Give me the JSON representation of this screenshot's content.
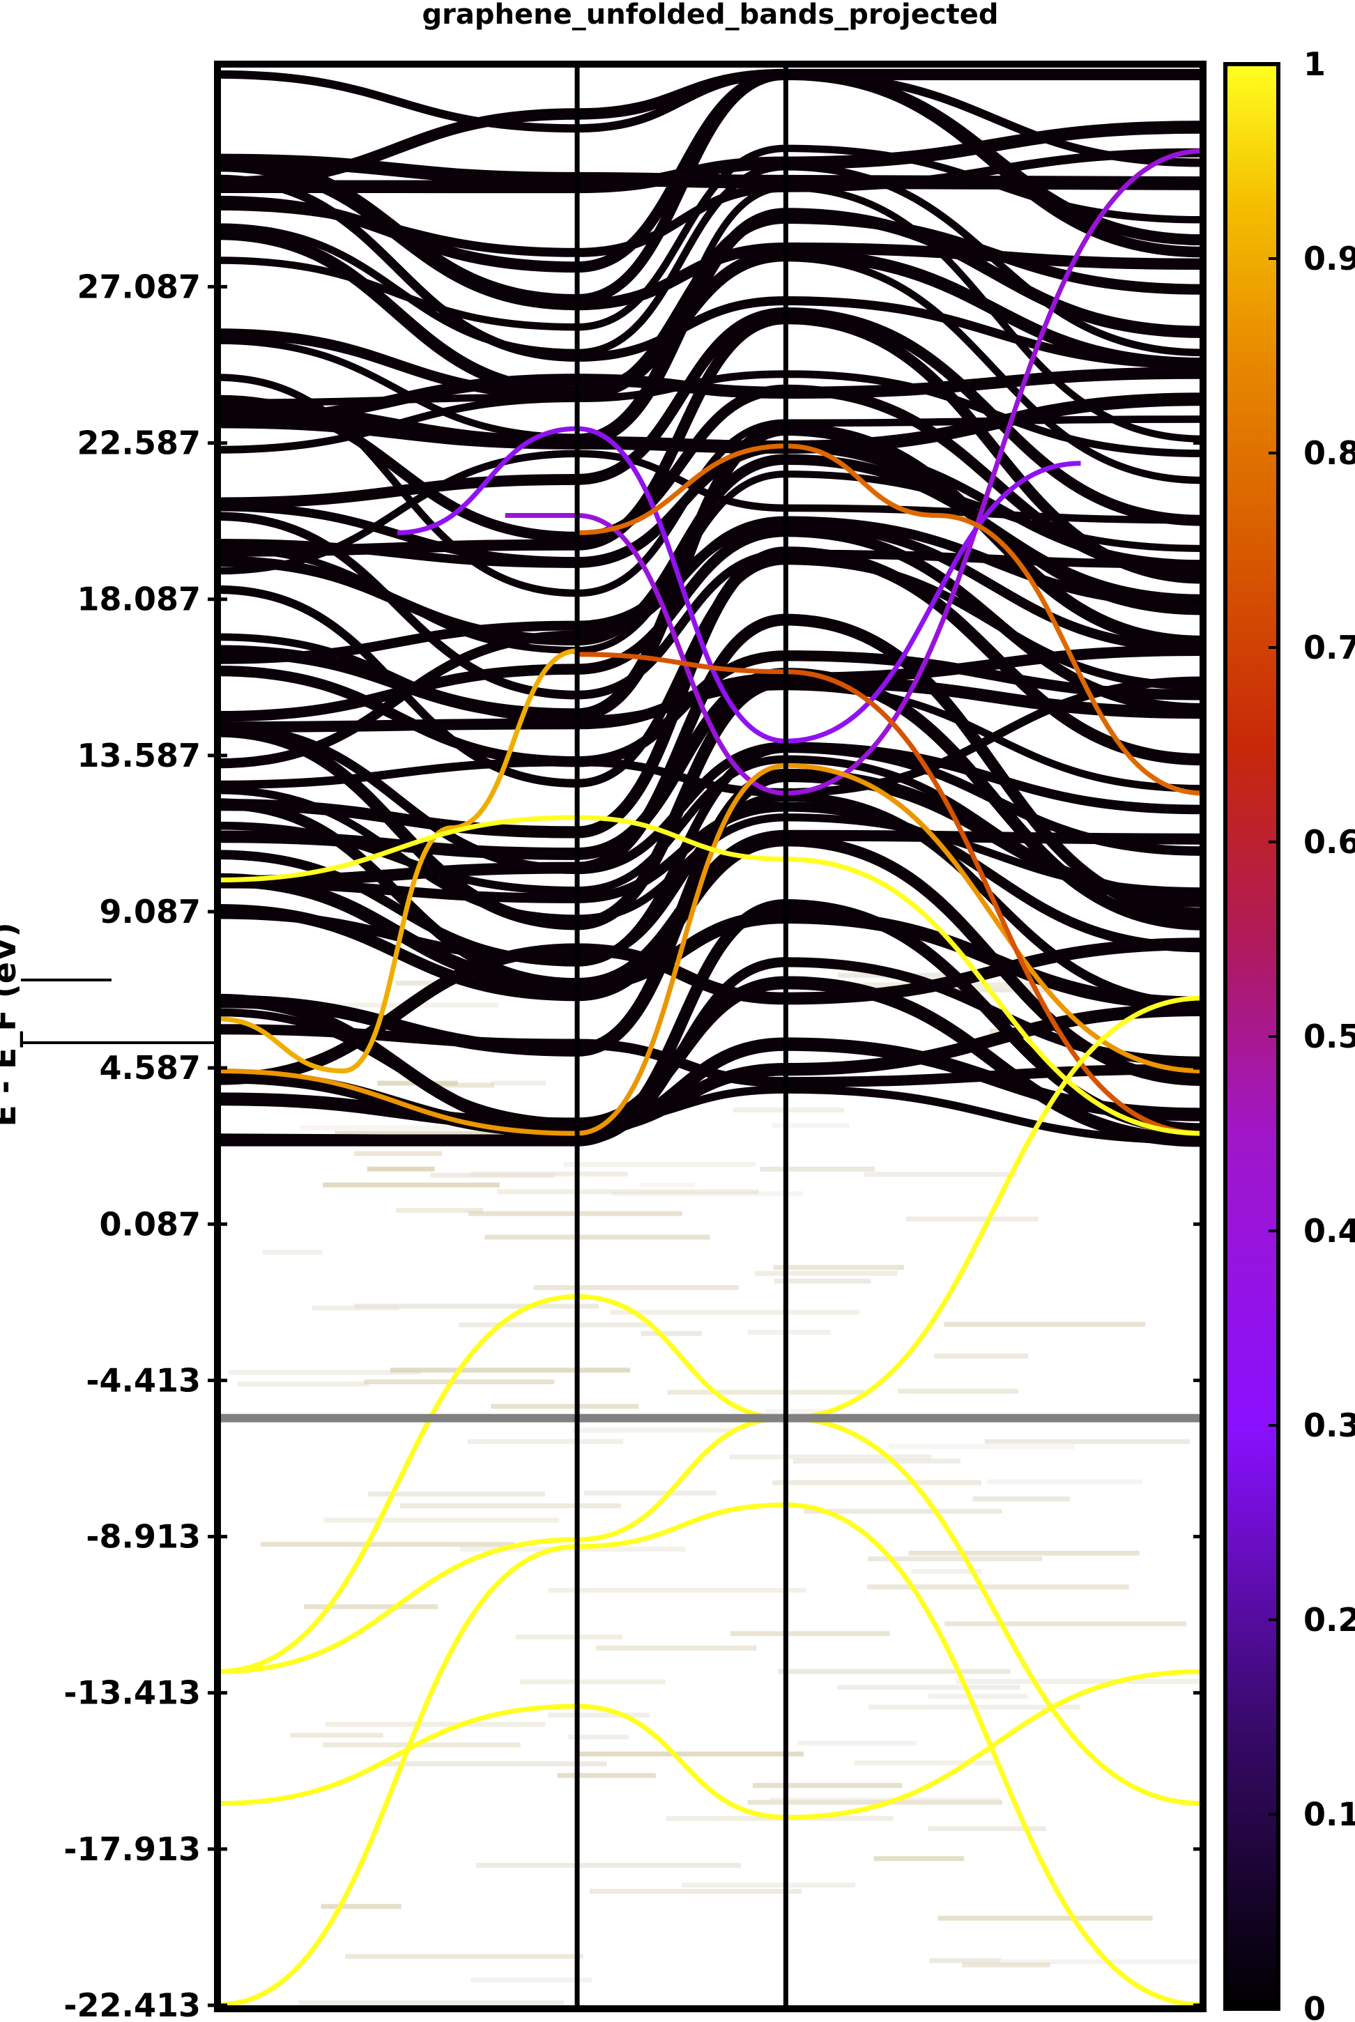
{
  "chart_data": {
    "type": "line",
    "title": "graphene_unfolded_bands_projected",
    "ylabel": "E - E_F (eV)",
    "xlabel": "",
    "ylim": [
      -22.513,
      33.5
    ],
    "x_segments": [
      0,
      1.0,
      1.58,
      2.74
    ],
    "grid": false,
    "y_ticks": [
      {
        "value": 27.087,
        "label": "27.087"
      },
      {
        "value": 22.587,
        "label": "22.587"
      },
      {
        "value": 18.087,
        "label": "18.087"
      },
      {
        "value": 13.587,
        "label": "13.587"
      },
      {
        "value": 9.087,
        "label": "9.087"
      },
      {
        "value": 4.587,
        "label": "4.587"
      },
      {
        "value": 0.087,
        "label": "0.087"
      },
      {
        "value": -4.413,
        "label": "-4.413"
      },
      {
        "value": -8.913,
        "label": "-8.913"
      },
      {
        "value": -13.413,
        "label": "-13.413"
      },
      {
        "value": -17.913,
        "label": "-17.913"
      },
      {
        "value": -22.413,
        "label": "-22.413"
      }
    ],
    "fermi_level": -5.5,
    "colorbar": {
      "range": [
        0,
        1
      ],
      "ticks": [
        {
          "value": 1.0,
          "label": "1"
        },
        {
          "value": 0.9,
          "label": "0.9"
        },
        {
          "value": 0.8,
          "label": "0.8"
        },
        {
          "value": 0.7,
          "label": "0.7"
        },
        {
          "value": 0.6,
          "label": "0.6"
        },
        {
          "value": 0.5,
          "label": "0.5"
        },
        {
          "value": 0.4,
          "label": "0.4"
        },
        {
          "value": 0.3,
          "label": "0.3"
        },
        {
          "value": 0.2,
          "label": "0.2"
        },
        {
          "value": 0.1,
          "label": "0.1"
        },
        {
          "value": 0.0,
          "label": "0"
        }
      ],
      "colors": [
        "#000000",
        "#3a0a6e",
        "#8a10ff",
        "#a016c8",
        "#b01a5a",
        "#c82808",
        "#d85a00",
        "#e88a00",
        "#f5c000",
        "#ffff20"
      ]
    },
    "yellow_bands": [
      {
        "x": [
          0,
          1.0,
          1.58,
          2.74
        ],
        "y": [
          -22.4,
          -9.2,
          -8.0,
          -22.4
        ],
        "weight": 1.0
      },
      {
        "x": [
          0,
          1.0,
          1.58,
          2.74
        ],
        "y": [
          -16.6,
          -13.8,
          -17.0,
          -12.8
        ],
        "weight": 1.0
      },
      {
        "x": [
          0,
          1.0,
          1.58,
          2.74
        ],
        "y": [
          -12.8,
          -9.0,
          -5.5,
          -16.6
        ],
        "weight": 1.0
      },
      {
        "x": [
          0,
          1.0,
          1.58,
          2.74
        ],
        "y": [
          -12.8,
          -2.0,
          -5.5,
          6.6
        ],
        "weight": 1.0
      },
      {
        "x": [
          0,
          1.0,
          1.58,
          2.74
        ],
        "y": [
          10.0,
          11.8,
          10.6,
          2.7
        ],
        "weight": 1.0
      }
    ],
    "orange_bands": [
      {
        "x": [
          0,
          0.35,
          0.65,
          1.0
        ],
        "y": [
          6.0,
          4.5,
          11.5,
          16.6
        ],
        "weight": 0.85
      },
      {
        "x": [
          0,
          1.0,
          1.58,
          2.74
        ],
        "y": [
          4.5,
          2.7,
          13.3,
          4.5
        ],
        "weight": 0.8
      },
      {
        "x": [
          1.0,
          1.58,
          2.0,
          2.74
        ],
        "y": [
          20.0,
          22.5,
          20.5,
          12.5
        ],
        "weight": 0.7
      },
      {
        "x": [
          1.0,
          1.58,
          2.74
        ],
        "y": [
          16.5,
          16.0,
          2.7
        ],
        "weight": 0.65
      }
    ],
    "purple_bands": [
      {
        "x": [
          0.8,
          1.0,
          1.58,
          2.74
        ],
        "y": [
          20.5,
          20.5,
          12.5,
          31.0
        ],
        "weight": 0.3
      },
      {
        "x": [
          0.5,
          1.0,
          1.58,
          2.4
        ],
        "y": [
          20.0,
          23.0,
          14.0,
          22.0
        ],
        "weight": 0.25
      }
    ],
    "dark_band_count": 60
  }
}
